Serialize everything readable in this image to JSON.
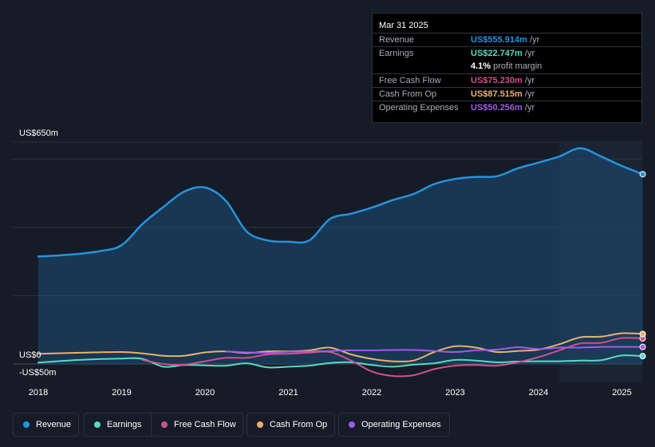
{
  "tooltip": {
    "date": "Mar 31 2025",
    "rows": [
      {
        "label": "Revenue",
        "value": "US$555.914m",
        "unit": "/yr",
        "color": "#2394df"
      },
      {
        "label": "Earnings",
        "value": "US$22.747m",
        "unit": "/yr",
        "color": "#57d9c2"
      },
      {
        "label": "",
        "value": "4.1%",
        "unit": "profit margin",
        "color": "#ffffff"
      },
      {
        "label": "Free Cash Flow",
        "value": "US$75.230m",
        "unit": "/yr",
        "color": "#d0508a"
      },
      {
        "label": "Cash From Op",
        "value": "US$87.515m",
        "unit": "/yr",
        "color": "#e9b169"
      },
      {
        "label": "Operating Expenses",
        "value": "US$50.256m",
        "unit": "/yr",
        "color": "#a15be8"
      }
    ]
  },
  "legend": [
    {
      "label": "Revenue",
      "color": "#2394df"
    },
    {
      "label": "Earnings",
      "color": "#57d9c2"
    },
    {
      "label": "Free Cash Flow",
      "color": "#d0508a"
    },
    {
      "label": "Cash From Op",
      "color": "#e9b169"
    },
    {
      "label": "Operating Expenses",
      "color": "#a15be8"
    }
  ],
  "chart_data": {
    "type": "area",
    "title": "",
    "y_unit": "US$m",
    "ylim": [
      -50,
      650
    ],
    "y_tick_labels": [
      "US$650m",
      "US$0",
      "-US$50m"
    ],
    "x_tick_labels": [
      "2018",
      "2019",
      "2020",
      "2021",
      "2022",
      "2023",
      "2024",
      "2025"
    ],
    "forecast_shading_from": 2024.25,
    "series": [
      {
        "name": "Revenue",
        "color": "#2394df",
        "filled": true,
        "points": [
          [
            2018.0,
            315
          ],
          [
            2018.25,
            318
          ],
          [
            2018.5,
            323
          ],
          [
            2018.75,
            331
          ],
          [
            2019.0,
            348
          ],
          [
            2019.25,
            410
          ],
          [
            2019.5,
            460
          ],
          [
            2019.75,
            505
          ],
          [
            2020.0,
            517
          ],
          [
            2020.25,
            478
          ],
          [
            2020.5,
            388
          ],
          [
            2020.75,
            362
          ],
          [
            2021.0,
            358
          ],
          [
            2021.25,
            362
          ],
          [
            2021.5,
            425
          ],
          [
            2021.75,
            440
          ],
          [
            2022.0,
            458
          ],
          [
            2022.25,
            480
          ],
          [
            2022.5,
            498
          ],
          [
            2022.75,
            527
          ],
          [
            2023.0,
            542
          ],
          [
            2023.25,
            548
          ],
          [
            2023.5,
            550
          ],
          [
            2023.75,
            573
          ],
          [
            2024.0,
            590
          ],
          [
            2024.25,
            608
          ],
          [
            2024.5,
            632
          ],
          [
            2024.75,
            608
          ],
          [
            2025.0,
            580
          ],
          [
            2025.25,
            556
          ]
        ]
      },
      {
        "name": "Earnings",
        "color": "#57d9c2",
        "filled": false,
        "points": [
          [
            2018.0,
            4
          ],
          [
            2018.5,
            12
          ],
          [
            2019.0,
            16
          ],
          [
            2019.25,
            15
          ],
          [
            2019.5,
            -8
          ],
          [
            2019.75,
            -3
          ],
          [
            2020.0,
            -4
          ],
          [
            2020.25,
            -5
          ],
          [
            2020.5,
            2
          ],
          [
            2020.75,
            -10
          ],
          [
            2021.0,
            -8
          ],
          [
            2021.25,
            -5
          ],
          [
            2021.5,
            3
          ],
          [
            2021.75,
            5
          ],
          [
            2022.0,
            -3
          ],
          [
            2022.25,
            -8
          ],
          [
            2022.5,
            -2
          ],
          [
            2022.75,
            2
          ],
          [
            2023.0,
            12
          ],
          [
            2023.25,
            10
          ],
          [
            2023.5,
            5
          ],
          [
            2023.75,
            7
          ],
          [
            2024.0,
            8
          ],
          [
            2024.25,
            8
          ],
          [
            2024.5,
            10
          ],
          [
            2024.75,
            11
          ],
          [
            2025.0,
            25
          ],
          [
            2025.25,
            23
          ]
        ]
      },
      {
        "name": "Free Cash Flow",
        "color": "#d0508a",
        "filled": false,
        "points": [
          [
            2019.25,
            12
          ],
          [
            2019.5,
            0
          ],
          [
            2019.75,
            -2
          ],
          [
            2020.0,
            8
          ],
          [
            2020.25,
            18
          ],
          [
            2020.5,
            18
          ],
          [
            2020.75,
            28
          ],
          [
            2021.0,
            30
          ],
          [
            2021.25,
            33
          ],
          [
            2021.5,
            35
          ],
          [
            2021.75,
            10
          ],
          [
            2022.0,
            -22
          ],
          [
            2022.25,
            -35
          ],
          [
            2022.5,
            -33
          ],
          [
            2022.75,
            -15
          ],
          [
            2023.0,
            -5
          ],
          [
            2023.25,
            -3
          ],
          [
            2023.5,
            -5
          ],
          [
            2023.75,
            5
          ],
          [
            2024.0,
            20
          ],
          [
            2024.25,
            40
          ],
          [
            2024.5,
            60
          ],
          [
            2024.75,
            62
          ],
          [
            2025.0,
            76
          ],
          [
            2025.25,
            75
          ]
        ]
      },
      {
        "name": "Cash From Op",
        "color": "#e9b169",
        "filled": false,
        "points": [
          [
            2018.0,
            30
          ],
          [
            2018.5,
            33
          ],
          [
            2019.0,
            35
          ],
          [
            2019.25,
            31
          ],
          [
            2019.5,
            24
          ],
          [
            2019.75,
            24
          ],
          [
            2020.0,
            34
          ],
          [
            2020.25,
            37
          ],
          [
            2020.5,
            32
          ],
          [
            2020.75,
            37
          ],
          [
            2021.0,
            37
          ],
          [
            2021.25,
            40
          ],
          [
            2021.5,
            48
          ],
          [
            2021.75,
            28
          ],
          [
            2022.0,
            15
          ],
          [
            2022.25,
            8
          ],
          [
            2022.5,
            10
          ],
          [
            2022.75,
            35
          ],
          [
            2023.0,
            52
          ],
          [
            2023.25,
            48
          ],
          [
            2023.5,
            35
          ],
          [
            2023.75,
            38
          ],
          [
            2024.0,
            42
          ],
          [
            2024.25,
            58
          ],
          [
            2024.5,
            78
          ],
          [
            2024.75,
            80
          ],
          [
            2025.0,
            90
          ],
          [
            2025.25,
            88
          ]
        ]
      },
      {
        "name": "Operating Expenses",
        "color": "#a15be8",
        "filled": false,
        "points": [
          [
            2020.25,
            37
          ],
          [
            2020.5,
            34
          ],
          [
            2020.75,
            33
          ],
          [
            2021.0,
            36
          ],
          [
            2021.25,
            37
          ],
          [
            2021.5,
            38
          ],
          [
            2021.75,
            40
          ],
          [
            2022.0,
            40
          ],
          [
            2022.25,
            41
          ],
          [
            2022.5,
            41
          ],
          [
            2022.75,
            38
          ],
          [
            2023.0,
            35
          ],
          [
            2023.25,
            40
          ],
          [
            2023.5,
            42
          ],
          [
            2023.75,
            49
          ],
          [
            2024.0,
            44
          ],
          [
            2024.25,
            48
          ],
          [
            2024.5,
            48
          ],
          [
            2024.75,
            50
          ],
          [
            2025.0,
            50
          ],
          [
            2025.25,
            50
          ]
        ]
      }
    ]
  }
}
